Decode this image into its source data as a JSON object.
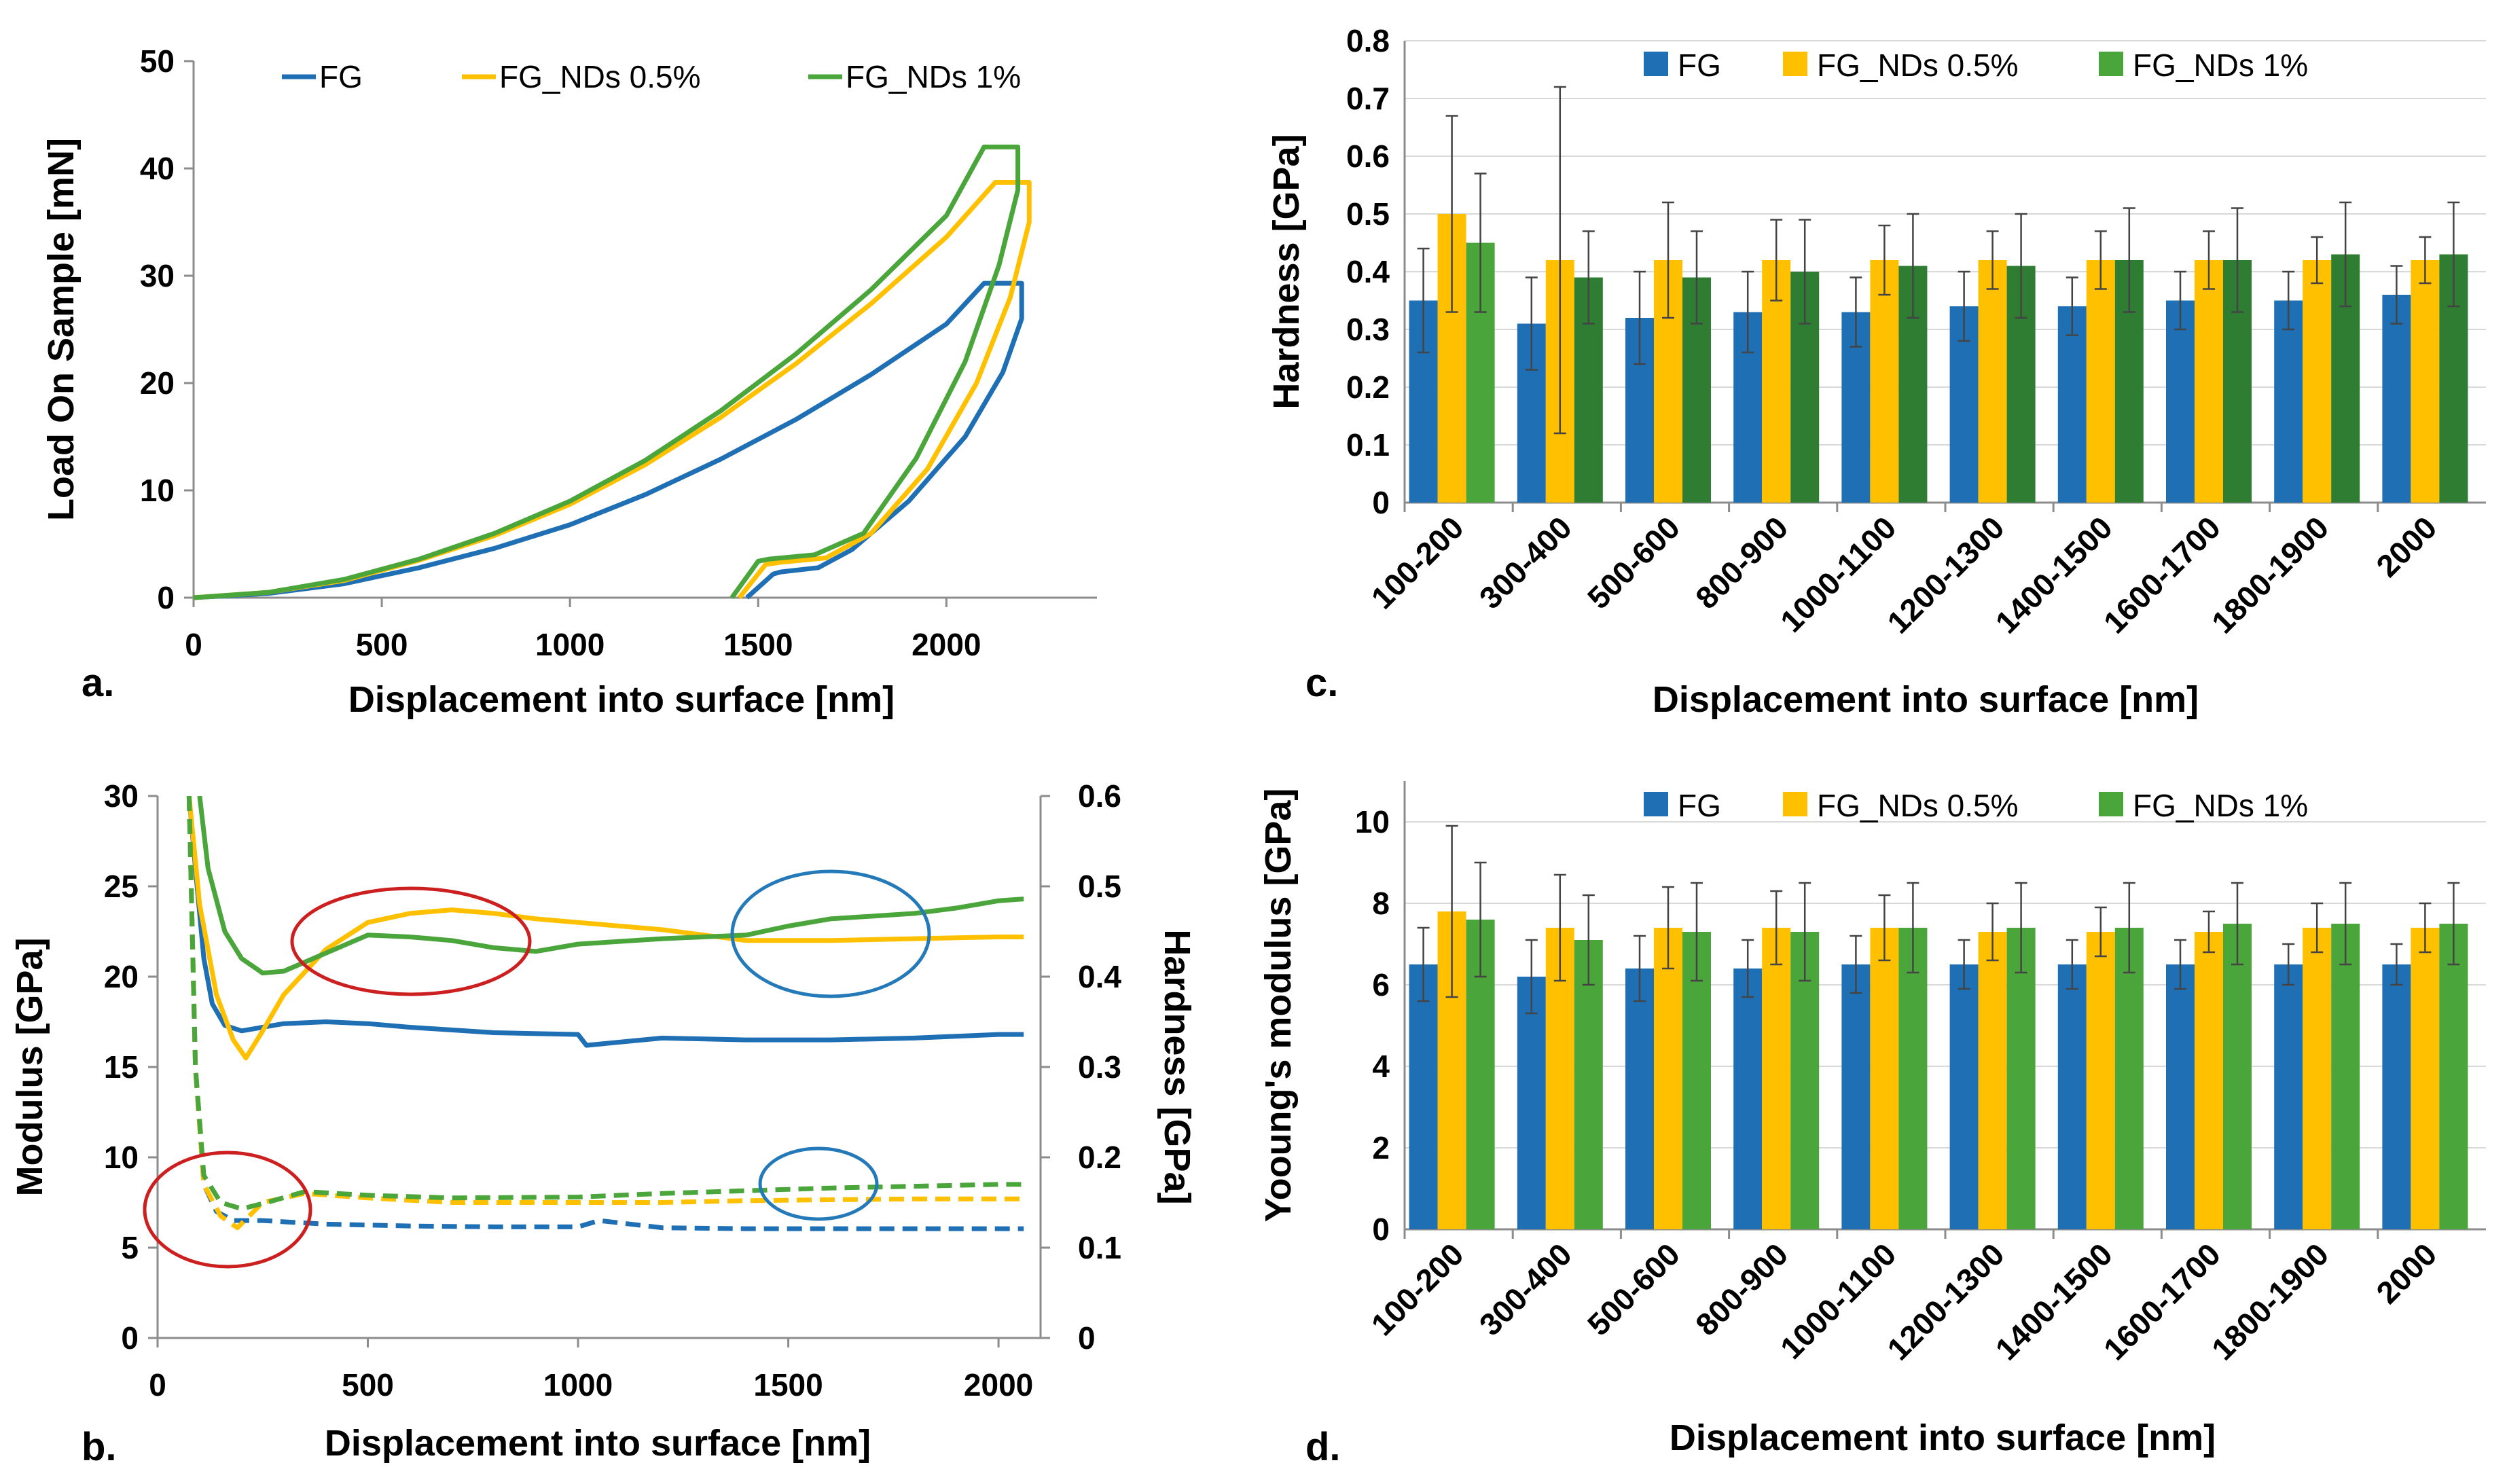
{
  "colors": {
    "FG": "#1f6fb5",
    "FG_NDs 0.5%": "#ffc000",
    "FG_NDs 1%": "#4aa53a",
    "FG_NDs 1% dark": "#2e7d32",
    "circle_red": "#cc1f1f",
    "circle_blue": "#2479b8"
  },
  "chart_data": [
    {
      "id": "a",
      "panel_label": "a.",
      "type": "line",
      "xlabel": "Displacement into surface [nm]",
      "ylabel": "Load On Sample [mN]",
      "xlim": [
        0,
        2400
      ],
      "ylim": [
        0,
        50
      ],
      "xticks": [
        0,
        500,
        1000,
        1500,
        2000
      ],
      "yticks": [
        0,
        10,
        20,
        30,
        40,
        50
      ],
      "legend": [
        "FG",
        "FG_NDs 0.5%",
        "FG_NDs 1%"
      ],
      "series": [
        {
          "name": "FG",
          "x": [
            0,
            200,
            400,
            600,
            800,
            1000,
            1200,
            1400,
            1600,
            1800,
            2000,
            2100,
            2200,
            2200,
            2150,
            2050,
            1900,
            1750,
            1660,
            1560,
            1540,
            1470
          ],
          "y": [
            0,
            0.4,
            1.3,
            2.8,
            4.6,
            6.8,
            9.6,
            12.9,
            16.6,
            20.8,
            25.5,
            29.3,
            29.3,
            26,
            21,
            15,
            9,
            4.5,
            2.8,
            2.4,
            2.2,
            0
          ]
        },
        {
          "name": "FG_NDs 0.5%",
          "x": [
            0,
            200,
            400,
            600,
            800,
            1000,
            1200,
            1400,
            1600,
            1800,
            2000,
            2130,
            2220,
            2220,
            2170,
            2080,
            1950,
            1800,
            1680,
            1560,
            1520,
            1450
          ],
          "y": [
            0,
            0.5,
            1.6,
            3.5,
            5.8,
            8.7,
            12.4,
            16.8,
            21.8,
            27.4,
            33.6,
            38.7,
            38.7,
            35,
            28,
            20,
            12,
            6,
            3.7,
            3.3,
            3.1,
            0
          ]
        },
        {
          "name": "FG_NDs 1%",
          "x": [
            0,
            200,
            400,
            600,
            800,
            1000,
            1200,
            1400,
            1600,
            1800,
            2000,
            2100,
            2190,
            2190,
            2140,
            2050,
            1920,
            1780,
            1650,
            1530,
            1500,
            1430
          ],
          "y": [
            0,
            0.5,
            1.7,
            3.6,
            6.0,
            9.0,
            12.8,
            17.4,
            22.7,
            28.7,
            35.6,
            42.0,
            42.0,
            38,
            31,
            22,
            13,
            6,
            4.0,
            3.6,
            3.4,
            0
          ]
        }
      ]
    },
    {
      "id": "b",
      "panel_label": "b.",
      "type": "line",
      "xlabel": "Displacement into surface [nm]",
      "ylabel": "Modulus [GPa]",
      "ylabel_right": "Hardness [GPa]",
      "xlim": [
        0,
        2100
      ],
      "ylim": [
        0,
        30
      ],
      "ylim_right": [
        0,
        0.6
      ],
      "xticks": [
        0,
        500,
        1000,
        1500,
        2000
      ],
      "yticks": [
        0,
        5,
        10,
        15,
        20,
        25,
        30
      ],
      "yticks_right": [
        "0",
        "0.1",
        "0.2",
        "0.3",
        "0.4",
        "0.5",
        "0.6"
      ],
      "series": [
        {
          "name": "FG",
          "kind": "modulus",
          "x": [
            75,
            90,
            110,
            130,
            160,
            200,
            300,
            400,
            500,
            600,
            800,
            1000,
            1020,
            1200,
            1400,
            1600,
            1800,
            2000,
            2060
          ],
          "y": [
            30,
            26,
            21,
            18.5,
            17.3,
            17,
            17.4,
            17.5,
            17.4,
            17.2,
            16.9,
            16.8,
            16.2,
            16.6,
            16.5,
            16.5,
            16.6,
            16.8,
            16.8
          ]
        },
        {
          "name": "FG_NDs 0.5%",
          "kind": "modulus",
          "x": [
            75,
            100,
            140,
            180,
            210,
            250,
            300,
            400,
            500,
            600,
            700,
            800,
            900,
            1000,
            1200,
            1400,
            1600,
            1800,
            2000,
            2060
          ],
          "y": [
            30,
            24,
            19,
            16.5,
            15.5,
            17,
            19,
            21.5,
            23,
            23.5,
            23.7,
            23.5,
            23.2,
            23,
            22.6,
            22,
            22,
            22.1,
            22.2,
            22.2
          ]
        },
        {
          "name": "FG_NDs 1%",
          "kind": "modulus",
          "x": [
            100,
            120,
            160,
            200,
            250,
            300,
            400,
            500,
            600,
            700,
            800,
            900,
            1000,
            1200,
            1400,
            1500,
            1600,
            1800,
            1900,
            2000,
            2060
          ],
          "y": [
            30,
            26,
            22.5,
            21,
            20.2,
            20.3,
            21.3,
            22.3,
            22.2,
            22,
            21.6,
            21.4,
            21.8,
            22.1,
            22.3,
            22.8,
            23.2,
            23.5,
            23.8,
            24.2,
            24.3
          ]
        },
        {
          "name": "FG",
          "kind": "hardness",
          "x": [
            75,
            90,
            110,
            140,
            180,
            250,
            400,
            600,
            800,
            1000,
            1050,
            1200,
            1400,
            1600,
            1800,
            2000,
            2060
          ],
          "y": [
            0.6,
            0.3,
            0.17,
            0.14,
            0.13,
            0.13,
            0.126,
            0.124,
            0.123,
            0.123,
            0.13,
            0.122,
            0.121,
            0.121,
            0.121,
            0.121,
            0.121
          ]
        },
        {
          "name": "FG_NDs 0.5%",
          "kind": "hardness",
          "x": [
            75,
            90,
            110,
            150,
            190,
            250,
            350,
            500,
            700,
            1000,
            1200,
            1400,
            1600,
            1800,
            2000,
            2060
          ],
          "y": [
            0.6,
            0.3,
            0.17,
            0.135,
            0.122,
            0.15,
            0.16,
            0.155,
            0.15,
            0.15,
            0.15,
            0.152,
            0.153,
            0.154,
            0.154,
            0.154
          ]
        },
        {
          "name": "FG_NDs 1%",
          "kind": "hardness",
          "x": [
            75,
            90,
            110,
            150,
            200,
            260,
            350,
            500,
            700,
            1000,
            1200,
            1400,
            1600,
            1800,
            2000,
            2060
          ],
          "y": [
            0.6,
            0.3,
            0.18,
            0.15,
            0.143,
            0.15,
            0.162,
            0.158,
            0.155,
            0.156,
            0.16,
            0.163,
            0.166,
            0.168,
            0.17,
            0.17
          ]
        }
      ]
    },
    {
      "id": "c",
      "panel_label": "c.",
      "type": "bar",
      "xlabel": "Displacement into surface [nm]",
      "ylabel": "Hardness [GPa]",
      "ylim": [
        0,
        0.8
      ],
      "yticks": [
        "0",
        "0.1",
        "0.2",
        "0.3",
        "0.4",
        "0.5",
        "0.6",
        "0.7",
        "0.8"
      ],
      "categories": [
        "100-200",
        "300-400",
        "500-600",
        "800-900",
        "1000-1100",
        "1200-1300",
        "1400-1500",
        "1600-1700",
        "1800-1900",
        "2000"
      ],
      "legend": [
        "FG",
        "FG_NDs 0.5%",
        "FG_NDs 1%"
      ],
      "series": [
        {
          "name": "FG",
          "values": [
            0.35,
            0.31,
            0.32,
            0.33,
            0.33,
            0.34,
            0.34,
            0.35,
            0.35,
            0.36
          ],
          "errors": [
            0.09,
            0.08,
            0.08,
            0.07,
            0.06,
            0.06,
            0.05,
            0.05,
            0.05,
            0.05
          ]
        },
        {
          "name": "FG_NDs 0.5%",
          "values": [
            0.5,
            0.42,
            0.42,
            0.42,
            0.42,
            0.42,
            0.42,
            0.42,
            0.42,
            0.42
          ],
          "errors": [
            0.17,
            0.3,
            0.1,
            0.07,
            0.06,
            0.05,
            0.05,
            0.05,
            0.04,
            0.04
          ]
        },
        {
          "name": "FG_NDs 1%",
          "values": [
            0.45,
            0.39,
            0.39,
            0.4,
            0.41,
            0.41,
            0.42,
            0.42,
            0.43,
            0.43
          ],
          "errors": [
            0.12,
            0.08,
            0.08,
            0.09,
            0.09,
            0.09,
            0.09,
            0.09,
            0.09,
            0.09
          ]
        }
      ]
    },
    {
      "id": "d",
      "panel_label": "d.",
      "type": "bar",
      "xlabel": "Displacement into surface [nm]",
      "ylabel": "Yooung's modulus [GPa]",
      "ylim": [
        0,
        11
      ],
      "yticks": [
        "0",
        "2",
        "4",
        "6",
        "8",
        "10"
      ],
      "categories": [
        "100-200",
        "300-400",
        "500-600",
        "800-900",
        "1000-1100",
        "1200-1300",
        "1400-1500",
        "1600-1700",
        "1800-1900",
        "2000"
      ],
      "legend": [
        "FG",
        "FG_NDs 0.5%",
        "FG_NDs 1%"
      ],
      "series": [
        {
          "name": "FG",
          "values": [
            6.5,
            6.2,
            6.4,
            6.4,
            6.5,
            6.5,
            6.5,
            6.5,
            6.5,
            6.5
          ],
          "errors": [
            0.9,
            0.9,
            0.8,
            0.7,
            0.7,
            0.6,
            0.6,
            0.6,
            0.5,
            0.5
          ]
        },
        {
          "name": "FG_NDs 0.5%",
          "values": [
            7.8,
            7.4,
            7.4,
            7.4,
            7.4,
            7.3,
            7.3,
            7.3,
            7.4,
            7.4
          ],
          "errors": [
            2.1,
            1.3,
            1.0,
            0.9,
            0.8,
            0.7,
            0.6,
            0.5,
            0.6,
            0.6
          ]
        },
        {
          "name": "FG_NDs 1%",
          "values": [
            7.6,
            7.1,
            7.3,
            7.3,
            7.4,
            7.4,
            7.4,
            7.5,
            7.5,
            7.5
          ],
          "errors": [
            1.4,
            1.1,
            1.2,
            1.2,
            1.1,
            1.1,
            1.1,
            1.0,
            1.0,
            1.0
          ]
        }
      ]
    }
  ]
}
